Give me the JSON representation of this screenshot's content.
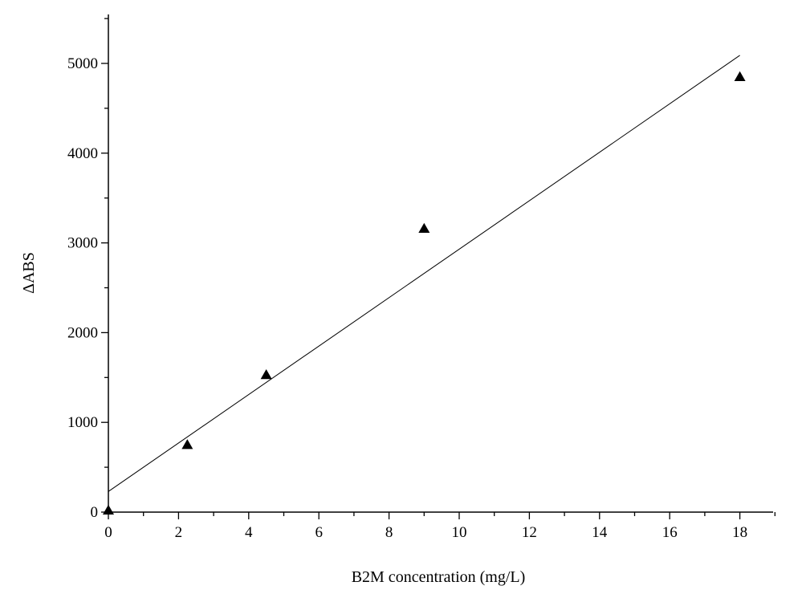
{
  "chart_data": {
    "type": "scatter",
    "title": "",
    "xlabel": "B2M concentration (mg/L)",
    "ylabel": "ΔABS",
    "xlim": [
      0,
      19
    ],
    "ylim": [
      0,
      5500
    ],
    "x_ticks": [
      0,
      2,
      4,
      6,
      8,
      10,
      12,
      14,
      16,
      18
    ],
    "y_ticks": [
      0,
      1000,
      2000,
      3000,
      4000,
      5000
    ],
    "x_tick_labels": [
      "0",
      "2",
      "4",
      "6",
      "8",
      "10",
      "12",
      "14",
      "16",
      "18"
    ],
    "y_tick_labels": [
      "0",
      "1000",
      "2000",
      "3000",
      "4000",
      "5000"
    ],
    "grid": false,
    "legend": "none",
    "marker": "triangle",
    "series": [
      {
        "points": [
          {
            "x": 0,
            "y": 20
          },
          {
            "x": 2.25,
            "y": 750
          },
          {
            "x": 4.5,
            "y": 1530
          },
          {
            "x": 9,
            "y": 3160
          },
          {
            "x": 18,
            "y": 4850
          }
        ]
      }
    ],
    "fit_line": {
      "x": [
        0,
        18
      ],
      "y": [
        230,
        5090
      ]
    }
  }
}
